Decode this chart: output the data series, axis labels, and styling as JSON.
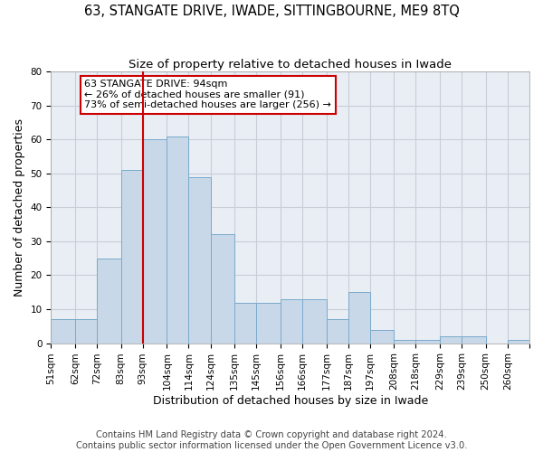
{
  "title": "63, STANGATE DRIVE, IWADE, SITTINGBOURNE, ME9 8TQ",
  "subtitle": "Size of property relative to detached houses in Iwade",
  "xlabel": "Distribution of detached houses by size in Iwade",
  "ylabel": "Number of detached properties",
  "bin_labels": [
    "51sqm",
    "62sqm",
    "72sqm",
    "83sqm",
    "93sqm",
    "104sqm",
    "114sqm",
    "124sqm",
    "135sqm",
    "145sqm",
    "156sqm",
    "166sqm",
    "177sqm",
    "187sqm",
    "197sqm",
    "208sqm",
    "218sqm",
    "229sqm",
    "239sqm",
    "250sqm",
    "260sqm"
  ],
  "bin_edges": [
    51,
    62,
    72,
    83,
    93,
    104,
    114,
    124,
    135,
    145,
    156,
    166,
    177,
    187,
    197,
    208,
    218,
    229,
    239,
    250,
    260
  ],
  "counts": [
    7,
    7,
    25,
    51,
    60,
    61,
    49,
    32,
    12,
    12,
    13,
    13,
    7,
    15,
    4,
    1,
    1,
    2,
    2,
    0,
    1
  ],
  "bar_facecolor": "#c8d8e8",
  "bar_edgecolor": "#7aaacc",
  "vline_x": 93,
  "vline_color": "#cc0000",
  "annotation_text": "63 STANGATE DRIVE: 94sqm\n← 26% of detached houses are smaller (91)\n73% of semi-detached houses are larger (256) →",
  "annotation_box_facecolor": "#ffffff",
  "annotation_box_edgecolor": "#cc0000",
  "ylim": [
    0,
    80
  ],
  "yticks": [
    0,
    10,
    20,
    30,
    40,
    50,
    60,
    70,
    80
  ],
  "grid_color": "#c8cdd8",
  "bg_color": "#e8eef4",
  "footer_line1": "Contains HM Land Registry data © Crown copyright and database right 2024.",
  "footer_line2": "Contains public sector information licensed under the Open Government Licence v3.0.",
  "title_fontsize": 10.5,
  "subtitle_fontsize": 9.5,
  "axis_label_fontsize": 9,
  "tick_fontsize": 7.5,
  "annotation_fontsize": 8.0,
  "footer_fontsize": 7.2
}
